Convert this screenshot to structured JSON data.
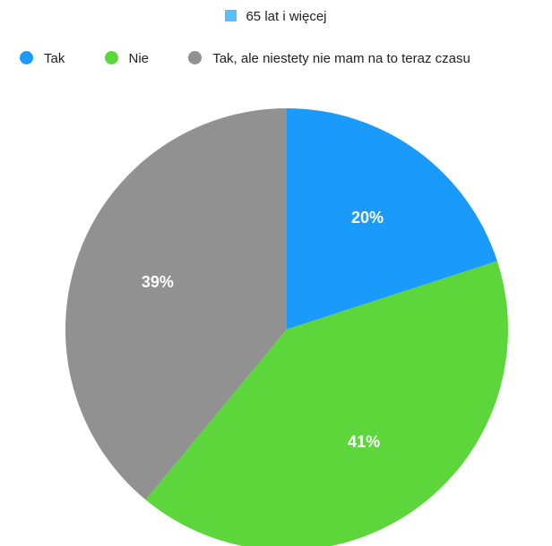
{
  "chart_data": {
    "type": "pie",
    "title": "65 lat i więcej",
    "title_color": "#5BC0F8",
    "slices": [
      {
        "name": "Tak",
        "value": 20,
        "label": "20%",
        "color": "#1A9BFC"
      },
      {
        "name": "Nie",
        "value": 41,
        "label": "41%",
        "color": "#5CD63A"
      },
      {
        "name": "Tak, ale niestety nie mam na to teraz czasu",
        "value": 39,
        "label": "39%",
        "color": "#919191"
      }
    ],
    "legend_position": "top"
  }
}
